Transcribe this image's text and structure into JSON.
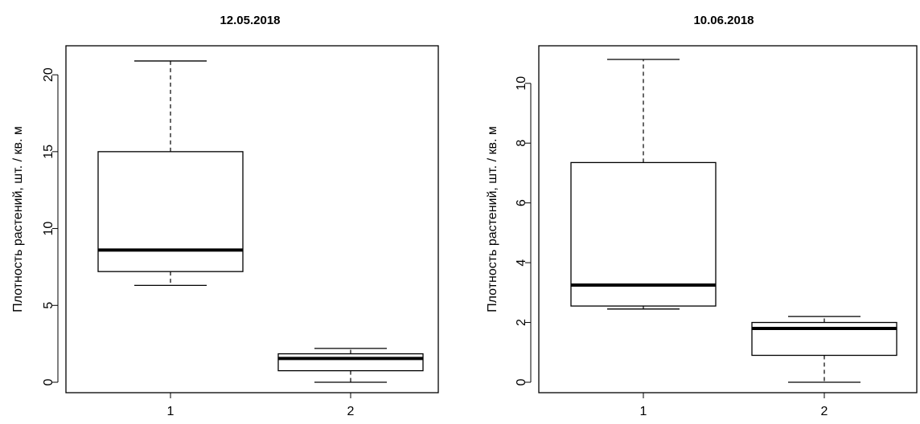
{
  "chart_data": [
    {
      "type": "box",
      "title": "12.05.2018",
      "xlabel": "",
      "ylabel": "Плотность растений, шт. / кв. м",
      "ylim": [
        0,
        21
      ],
      "yticks": [
        "0",
        "5",
        "10",
        "15",
        "20"
      ],
      "categories": [
        "1",
        "2"
      ],
      "boxes": [
        {
          "category": "1",
          "whisker_low": 6.3,
          "q1": 7.2,
          "median": 8.6,
          "q3": 15.0,
          "whisker_high": 20.9
        },
        {
          "category": "2",
          "whisker_low": 0.0,
          "q1": 0.75,
          "median": 1.55,
          "q3": 1.85,
          "whisker_high": 2.2
        }
      ]
    },
    {
      "type": "box",
      "title": "10.06.2018",
      "xlabel": "",
      "ylabel": "Плотность растений, шт. / кв. м",
      "ylim": [
        0,
        10.8
      ],
      "yticks": [
        "0",
        "2",
        "4",
        "6",
        "8",
        "10"
      ],
      "categories": [
        "1",
        "2"
      ],
      "boxes": [
        {
          "category": "1",
          "whisker_low": 2.45,
          "q1": 2.55,
          "median": 3.25,
          "q3": 7.35,
          "whisker_high": 10.8
        },
        {
          "category": "2",
          "whisker_low": 0.0,
          "q1": 0.9,
          "median": 1.8,
          "q3": 2.0,
          "whisker_high": 2.2
        }
      ]
    }
  ]
}
